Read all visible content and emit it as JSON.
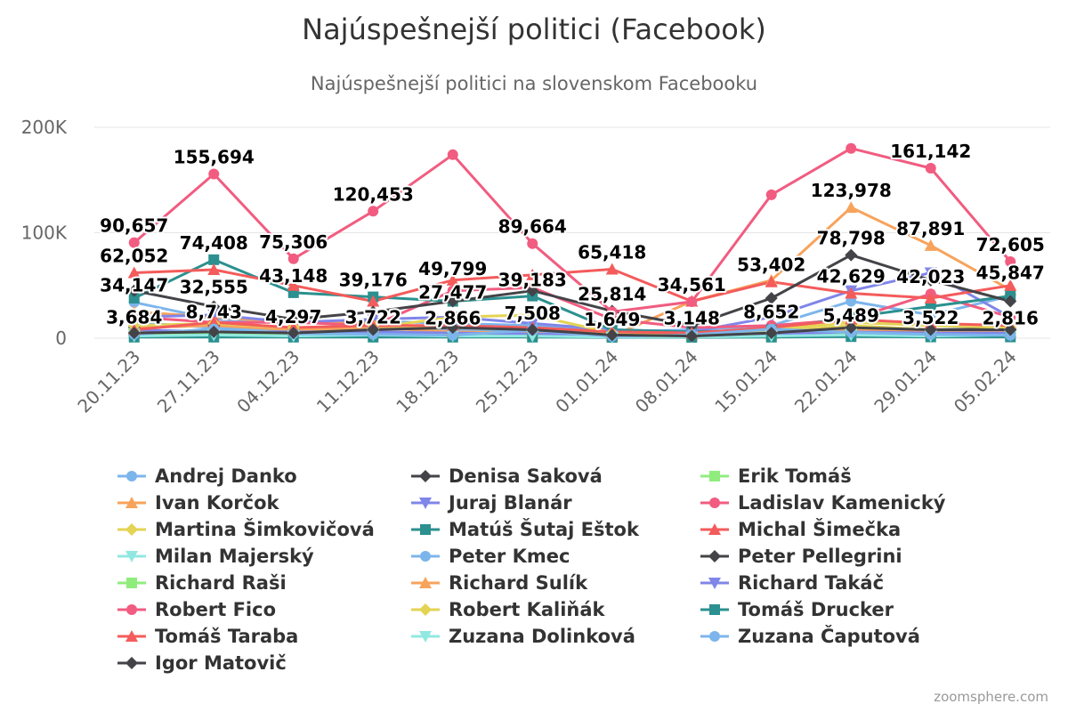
{
  "chart_data": {
    "type": "line",
    "title": "Najúspešnejší politici (Facebook)",
    "subtitle": "Najúspešnejší politici na slovenskom Facebooku",
    "credits": "zoomsphere.com",
    "categories": [
      "20.11.23",
      "27.11.23",
      "04.12.23",
      "11.12.23",
      "18.12.23",
      "25.12.23",
      "01.01.24",
      "08.01.24",
      "15.01.24",
      "22.01.24",
      "29.01.24",
      "05.02.24"
    ],
    "ylim": [
      0,
      200000
    ],
    "yticks": [
      0,
      100000,
      200000
    ],
    "ytick_labels": [
      "0",
      "100K",
      "200K"
    ],
    "grid": true,
    "legend_position": "bottom",
    "series": [
      {
        "name": "Andrej Danko",
        "color": "#7cb5ec",
        "marker": "circle",
        "values": [
          34000,
          18000,
          15000,
          16000,
          14000,
          12000,
          6000,
          8000,
          12000,
          35000,
          22000,
          40000
        ]
      },
      {
        "name": "Denisa Saková",
        "color": "#434348",
        "marker": "diamond",
        "values": [
          10000,
          12000,
          8000,
          9000,
          8000,
          7000,
          3000,
          4000,
          5000,
          10000,
          8000,
          9000
        ]
      },
      {
        "name": "Erik Tomáš",
        "color": "#90ed7d",
        "marker": "square",
        "values": [
          5000,
          6000,
          4000,
          5000,
          4000,
          3000,
          2000,
          2000,
          3000,
          5000,
          4000,
          6000
        ]
      },
      {
        "name": "Ivan Korčok",
        "color": "#f7a35c",
        "marker": "triangle",
        "values": [
          25000,
          20000,
          15000,
          14000,
          8000,
          4000,
          2000,
          35000,
          55000,
          123978,
          87891,
          45847
        ]
      },
      {
        "name": "Juraj Blanár",
        "color": "#8085e9",
        "marker": "triangle-down",
        "values": [
          20000,
          22000,
          15000,
          18000,
          20000,
          14000,
          8000,
          6000,
          20000,
          45000,
          62000,
          20000
        ]
      },
      {
        "name": "Ladislav Kamenický",
        "color": "#f15c80",
        "marker": "circle",
        "values": [
          20000,
          15000,
          15000,
          12000,
          45000,
          48000,
          18000,
          10000,
          12000,
          18000,
          42000,
          20000
        ]
      },
      {
        "name": "Martina Šimkovičová",
        "color": "#e4d354",
        "marker": "diamond",
        "values": [
          5000,
          8000,
          7000,
          10000,
          20000,
          22000,
          5000,
          4000,
          6000,
          12000,
          8000,
          8000
        ]
      },
      {
        "name": "Matúš Šutaj Eštok",
        "color": "#2b908f",
        "marker": "square",
        "values": [
          38000,
          74408,
          43148,
          39176,
          35000,
          40000,
          8000,
          6000,
          8000,
          20000,
          30000,
          40000
        ]
      },
      {
        "name": "Michal Šimečka",
        "color": "#f45b5b",
        "marker": "triangle",
        "values": [
          62052,
          65000,
          50000,
          35000,
          55000,
          60000,
          65418,
          35000,
          53402,
          42629,
          38000,
          50000
        ]
      },
      {
        "name": "Milan Majerský",
        "color": "#91e8e1",
        "marker": "triangle-down",
        "values": [
          3000,
          5000,
          3000,
          4000,
          3000,
          2000,
          1000,
          1000,
          2000,
          4000,
          3000,
          4000
        ]
      },
      {
        "name": "Peter Kmec",
        "color": "#7cb5ec",
        "marker": "circle",
        "values": [
          15000,
          10000,
          8000,
          9000,
          8000,
          6000,
          4000,
          5000,
          6000,
          9000,
          7000,
          8000
        ]
      },
      {
        "name": "Peter Pellegrini",
        "color": "#434348",
        "marker": "diamond",
        "values": [
          45000,
          30000,
          18000,
          25000,
          35000,
          45000,
          25814,
          12000,
          38000,
          78798,
          55000,
          35000
        ]
      },
      {
        "name": "Richard Raši",
        "color": "#90ed7d",
        "marker": "square",
        "values": [
          4000,
          4000,
          4000,
          4000,
          4000,
          3000,
          2000,
          2000,
          3000,
          4000,
          4000,
          4000
        ]
      },
      {
        "name": "Richard Sulík",
        "color": "#f7a35c",
        "marker": "triangle",
        "values": [
          10000,
          12000,
          8000,
          10000,
          6000,
          5000,
          3000,
          3000,
          4000,
          8000,
          6000,
          6000
        ]
      },
      {
        "name": "Richard Takáč",
        "color": "#8085e9",
        "marker": "triangle-down",
        "values": [
          8000,
          6000,
          6000,
          6000,
          5000,
          4000,
          3000,
          3000,
          4000,
          6000,
          5000,
          5000
        ]
      },
      {
        "name": "Robert Fico",
        "color": "#f15c80",
        "marker": "circle",
        "values": [
          90657,
          155694,
          75306,
          120453,
          174000,
          89664,
          25000,
          34561,
          136000,
          180000,
          161142,
          72605
        ]
      },
      {
        "name": "Robert Kaliňák",
        "color": "#e4d354",
        "marker": "diamond",
        "values": [
          12000,
          14000,
          10000,
          12000,
          10000,
          8000,
          5000,
          4000,
          8000,
          15000,
          12000,
          10000
        ]
      },
      {
        "name": "Tomáš Drucker",
        "color": "#2b908f",
        "marker": "square",
        "values": [
          1000,
          1000,
          1000,
          1000,
          1000,
          1000,
          800,
          800,
          1000,
          1500,
          1200,
          1200
        ]
      },
      {
        "name": "Tomáš Taraba",
        "color": "#f45b5b",
        "marker": "triangle",
        "values": [
          8000,
          15000,
          10000,
          12000,
          12000,
          10000,
          6000,
          5000,
          10000,
          18000,
          14000,
          12000
        ]
      },
      {
        "name": "Zuzana Dolinková",
        "color": "#91e8e1",
        "marker": "triangle-down",
        "values": [
          2000,
          3000,
          2000,
          3000,
          2000,
          2000,
          1000,
          1000,
          2000,
          3000,
          2000,
          3000
        ]
      },
      {
        "name": "Zuzana Čaputová",
        "color": "#7cb5ec",
        "marker": "circle",
        "values": [
          3684,
          8743,
          4297,
          3722,
          2866,
          7508,
          1649,
          3148,
          8652,
          5489,
          3522,
          2816
        ]
      },
      {
        "name": "Igor Matovič",
        "color": "#434348",
        "marker": "diamond",
        "values": [
          5000,
          6000,
          5000,
          8000,
          10000,
          8000,
          3000,
          2000,
          5000,
          10000,
          8000,
          8000
        ]
      }
    ],
    "data_labels": [
      {
        "text": "90,657",
        "x": 0,
        "y": 90657
      },
      {
        "text": "62,052",
        "x": 0,
        "y": 62052
      },
      {
        "text": "34,147",
        "x": 0,
        "y": 34147
      },
      {
        "text": "3,684",
        "x": 0,
        "y": 3684
      },
      {
        "text": "155,694",
        "x": 1,
        "y": 155694
      },
      {
        "text": "74,408",
        "x": 1,
        "y": 74408
      },
      {
        "text": "32,555",
        "x": 1,
        "y": 32555
      },
      {
        "text": "8,743",
        "x": 1,
        "y": 8743
      },
      {
        "text": "75,306",
        "x": 2,
        "y": 75306
      },
      {
        "text": "43,148",
        "x": 2,
        "y": 43148
      },
      {
        "text": "4,297",
        "x": 2,
        "y": 4297
      },
      {
        "text": "120,453",
        "x": 3,
        "y": 120453
      },
      {
        "text": "39,176",
        "x": 3,
        "y": 39176
      },
      {
        "text": "3,722",
        "x": 3,
        "y": 3722
      },
      {
        "text": "49,799",
        "x": 4,
        "y": 49799
      },
      {
        "text": "27,477",
        "x": 4,
        "y": 27477
      },
      {
        "text": "2,866",
        "x": 4,
        "y": 2866
      },
      {
        "text": "89,664",
        "x": 5,
        "y": 89664
      },
      {
        "text": "39,183",
        "x": 5,
        "y": 39183
      },
      {
        "text": "7,508",
        "x": 5,
        "y": 7508
      },
      {
        "text": "65,418",
        "x": 6,
        "y": 65418
      },
      {
        "text": "25,814",
        "x": 6,
        "y": 25814
      },
      {
        "text": "1,649",
        "x": 6,
        "y": 1649
      },
      {
        "text": "34,561",
        "x": 7,
        "y": 34561
      },
      {
        "text": "3,148",
        "x": 7,
        "y": 3148
      },
      {
        "text": "53,402",
        "x": 8,
        "y": 53402
      },
      {
        "text": "8,652",
        "x": 8,
        "y": 8652
      },
      {
        "text": "123,978",
        "x": 9,
        "y": 123978
      },
      {
        "text": "78,798",
        "x": 9,
        "y": 78798
      },
      {
        "text": "42,629",
        "x": 9,
        "y": 42629
      },
      {
        "text": "5,489",
        "x": 9,
        "y": 5489
      },
      {
        "text": "161,142",
        "x": 10,
        "y": 161142
      },
      {
        "text": "87,891",
        "x": 10,
        "y": 87891
      },
      {
        "text": "42,023",
        "x": 10,
        "y": 42023
      },
      {
        "text": "3,522",
        "x": 10,
        "y": 3522
      },
      {
        "text": "72,605",
        "x": 11,
        "y": 72605
      },
      {
        "text": "45,847",
        "x": 11,
        "y": 45847
      },
      {
        "text": "2,816",
        "x": 11,
        "y": 2816
      }
    ]
  }
}
